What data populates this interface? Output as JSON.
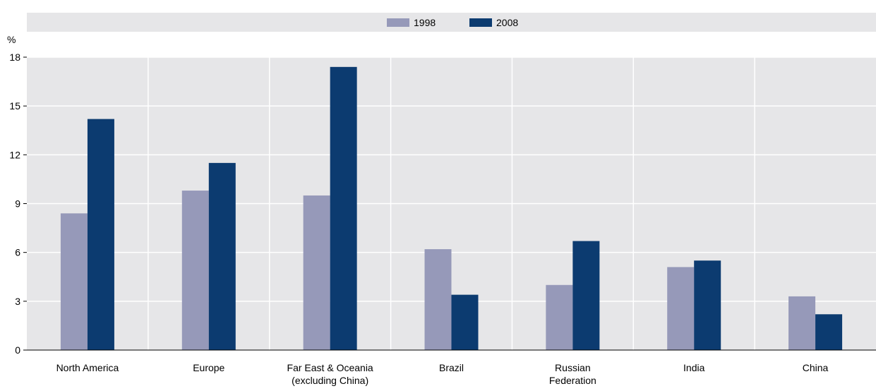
{
  "chart_data": {
    "type": "bar",
    "ylabel": "%",
    "ylim": [
      0,
      18
    ],
    "yticks": [
      0,
      3,
      6,
      9,
      12,
      15,
      18
    ],
    "grid": true,
    "legend_position": "top-center",
    "categories": [
      [
        "North America"
      ],
      [
        "Europe"
      ],
      [
        "Far East & Oceania",
        "(excluding China)"
      ],
      [
        "Brazil"
      ],
      [
        "Russian",
        "Federation"
      ],
      [
        "India"
      ],
      [
        "China"
      ]
    ],
    "series": [
      {
        "name": "1998",
        "color": "#9699b9",
        "values": [
          8.4,
          9.8,
          9.5,
          6.2,
          4.0,
          5.1,
          3.3
        ]
      },
      {
        "name": "2008",
        "color": "#0c3b70",
        "values": [
          14.2,
          11.5,
          17.4,
          3.4,
          6.7,
          5.5,
          2.2
        ]
      }
    ]
  }
}
